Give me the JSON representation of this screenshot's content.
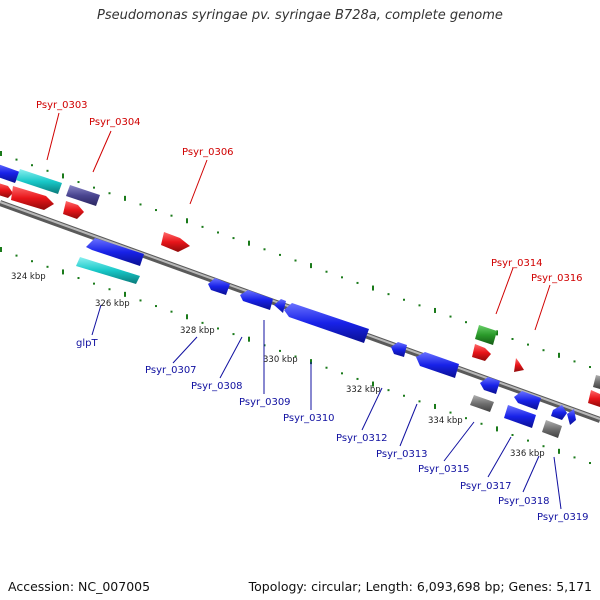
{
  "title": "Pseudomonas syringae pv. syringae B728a, complete genome",
  "footer": {
    "accession": "Accession: NC_007005",
    "summary": "Topology: circular; Length: 6,093,698 bp; Genes: 5,171"
  },
  "colors": {
    "red": "#e8151a",
    "blue": "#1822e8",
    "cyan": "#18c8c8",
    "purple": "#4a4590",
    "green": "#2a9a2a",
    "gray": "#707070",
    "backbone": "#8a8a8a",
    "label_red": "#d00000",
    "label_blue": "#1010a0"
  },
  "scale_ticks": [
    "324 kbp",
    "326 kbp",
    "328 kbp",
    "330 kbp",
    "332 kbp",
    "334 kbp",
    "336 kbp"
  ],
  "top_labels": [
    "Psyr_0303",
    "Psyr_0304",
    "Psyr_0306",
    "Psyr_0314",
    "Psyr_0316"
  ],
  "bottom_labels": [
    "glpT",
    "Psyr_0307",
    "Psyr_0308",
    "Psyr_0309",
    "Psyr_0310",
    "Psyr_0312",
    "Psyr_0313",
    "Psyr_0315",
    "Psyr_0317",
    "Psyr_0318",
    "Psyr_0319"
  ]
}
